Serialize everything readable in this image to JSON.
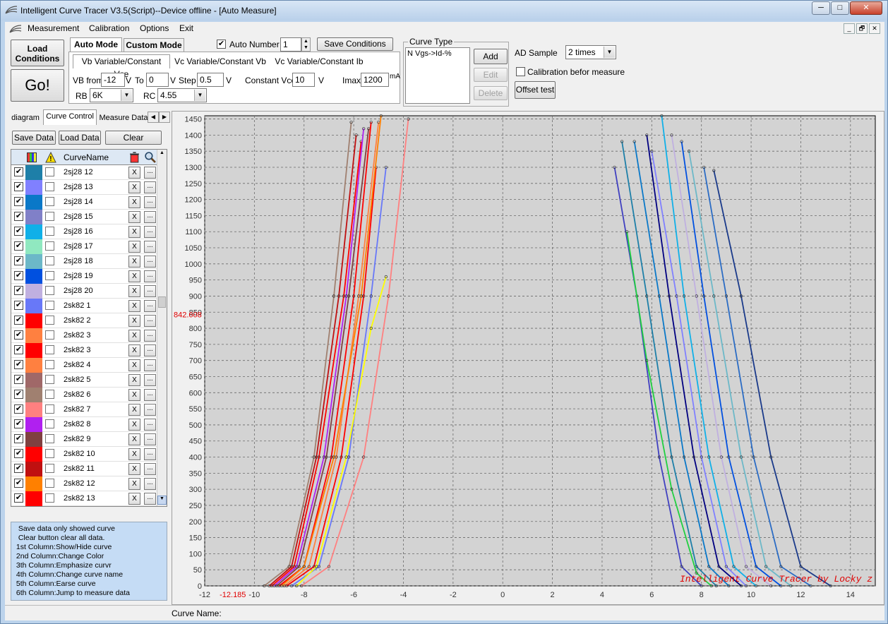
{
  "window": {
    "title": "Intelligent Curve Tracer V3.5(Script)--Device offline - [Auto Measure]",
    "controls": {
      "minimize": "─",
      "maximize": "□",
      "close": "✕"
    }
  },
  "menu": {
    "items": [
      "Measurement",
      "Calibration",
      "Options",
      "Exit"
    ],
    "mdi": {
      "minimize": "_",
      "restore": "🗗",
      "close": "✕"
    }
  },
  "toolbar": {
    "load_conditions": "Load\nConditions",
    "go": "Go!",
    "auto_mode_tab": "Auto Mode",
    "custom_mode_tab": "Custom Mode",
    "auto_number_label": "Auto Number",
    "auto_number_checked": true,
    "auto_number_value": "1",
    "save_conditions": "Save Conditions",
    "subtabs": [
      "Vb Variable/Constant Vce",
      "Vc Variable/Constant Vb",
      "Vc Variable/Constant Ib"
    ],
    "vb_from_label": "VB from",
    "vb_from_value": "-12",
    "v1": "V",
    "to_label": "To",
    "to_value": "0",
    "v2": "V",
    "step_label": "Step",
    "step_value": "0.5",
    "v3": "V",
    "constant_vce_label": "Constant Vce",
    "constant_vce_value": "10",
    "v4": "V",
    "imax_label": "Imax",
    "imax_value": "1200",
    "ma": "mA",
    "rb_label": "RB",
    "rb_value": "6K",
    "rc_label": "RC",
    "rc_value": "4.55"
  },
  "curve_type": {
    "title": "Curve Type",
    "items": [
      "N Vgs->Id-%"
    ],
    "add": "Add",
    "edit": "Edit",
    "delete": "Delete"
  },
  "ad": {
    "label": "AD Sample",
    "value": "2 times",
    "calibration_label": "Calibration befor measure",
    "calibration_checked": false,
    "offset_test": "Offset test"
  },
  "left_tabs": [
    "diagram",
    "Curve Control",
    "Measure Data"
  ],
  "left_buttons": {
    "save": "Save Data",
    "load": "Load Data",
    "clear": "Clear"
  },
  "grid": {
    "header": {
      "name": "CurveName"
    },
    "rows": [
      {
        "name": "2sj28 12",
        "color": "#1e7fa8"
      },
      {
        "name": "2sj28 13",
        "color": "#8080ff"
      },
      {
        "name": "2sj28 14",
        "color": "#0a78c8"
      },
      {
        "name": "2sj28 15",
        "color": "#8080c8"
      },
      {
        "name": "2sj28 16",
        "color": "#10b0e8"
      },
      {
        "name": "2sj28 17",
        "color": "#90e8c0"
      },
      {
        "name": "2sj28 18",
        "color": "#6cb8c8"
      },
      {
        "name": "2sj28 19",
        "color": "#0050e0"
      },
      {
        "name": "2sj28 20",
        "color": "#c0b0e0"
      },
      {
        "name": "2sk82 1",
        "color": "#6878f8"
      },
      {
        "name": "2sk82 2",
        "color": "#ff0000"
      },
      {
        "name": "2sk82 3",
        "color": "#ff8040"
      },
      {
        "name": "2sk82 3",
        "color": "#ff0000"
      },
      {
        "name": "2sk82 4",
        "color": "#ff8040"
      },
      {
        "name": "2sk82 5",
        "color": "#a06868"
      },
      {
        "name": "2sk82 6",
        "color": "#a08070"
      },
      {
        "name": "2sk82 7",
        "color": "#ff8080"
      },
      {
        "name": "2sk82 8",
        "color": "#b020f0"
      },
      {
        "name": "2sk82 9",
        "color": "#804040"
      },
      {
        "name": "2sk82 10",
        "color": "#ff0000"
      },
      {
        "name": "2sk82 11",
        "color": "#c01010"
      },
      {
        "name": "2sk82 12",
        "color": "#ff8000"
      },
      {
        "name": "2sk82 13",
        "color": "#ff0000"
      }
    ],
    "x_label": "X",
    "dots_label": "..."
  },
  "help_text": "  Save data only showed curve\n  Clear button clear all data.\n 1st Column:Show/Hide curve\n 2nd Column:Change Color\n 3th Column:Emphasize curvr\n 4th Column:Change curve name\n 5th Column:Earse curve\n 6th Column:Jump to measure data",
  "chart_data": {
    "type": "line",
    "xlim": [
      -12,
      15
    ],
    "ylim": [
      0,
      1460
    ],
    "x_ticks": [
      -12,
      -10,
      -8,
      -6,
      -4,
      -2,
      0,
      2,
      4,
      6,
      8,
      10,
      12,
      14
    ],
    "y_ticks": [
      0,
      50,
      100,
      150,
      200,
      250,
      300,
      350,
      400,
      450,
      500,
      550,
      600,
      650,
      700,
      750,
      800,
      850,
      900,
      950,
      1000,
      1050,
      1100,
      1150,
      1200,
      1250,
      1300,
      1350,
      1400,
      1450
    ],
    "cursor_x_label": "-12.185",
    "cursor_y_label": "842.608",
    "grid": true,
    "watermark": "Intelligent Curve Tracer by Locky z",
    "series_n": [
      {
        "color": "#a08070",
        "values": [
          [
            -9.6,
            0
          ],
          [
            -8.6,
            60
          ],
          [
            -7.6,
            400
          ],
          [
            -6.8,
            900
          ],
          [
            -6.1,
            1440
          ]
        ]
      },
      {
        "color": "#c01010",
        "values": [
          [
            -9.4,
            0
          ],
          [
            -8.5,
            60
          ],
          [
            -7.5,
            400
          ],
          [
            -6.6,
            900
          ],
          [
            -5.9,
            1400
          ]
        ]
      },
      {
        "color": "#ff0000",
        "values": [
          [
            -9.3,
            0
          ],
          [
            -8.4,
            60
          ],
          [
            -7.4,
            400
          ],
          [
            -6.4,
            900
          ],
          [
            -5.7,
            1380
          ]
        ]
      },
      {
        "color": "#b020f0",
        "values": [
          [
            -9.2,
            0
          ],
          [
            -8.3,
            60
          ],
          [
            -7.2,
            400
          ],
          [
            -6.3,
            900
          ],
          [
            -5.6,
            1420
          ]
        ]
      },
      {
        "color": "#804040",
        "values": [
          [
            -9.1,
            0
          ],
          [
            -8.2,
            60
          ],
          [
            -7.1,
            400
          ],
          [
            -6.2,
            900
          ],
          [
            -5.4,
            1420
          ]
        ]
      },
      {
        "color": "#ff0000",
        "values": [
          [
            -9.0,
            0
          ],
          [
            -8.0,
            60
          ],
          [
            -6.9,
            400
          ],
          [
            -6.0,
            900
          ],
          [
            -5.3,
            1440
          ]
        ]
      },
      {
        "color": "#ff8040",
        "values": [
          [
            -8.8,
            0
          ],
          [
            -7.8,
            60
          ],
          [
            -6.7,
            400
          ],
          [
            -5.8,
            900
          ],
          [
            -5.0,
            1440
          ]
        ]
      },
      {
        "color": "#ff0000",
        "values": [
          [
            -8.7,
            0
          ],
          [
            -7.6,
            60
          ],
          [
            -6.5,
            400
          ],
          [
            -5.6,
            900
          ],
          [
            -5.1,
            1300
          ]
        ]
      },
      {
        "color": "#6878f8",
        "values": [
          [
            -8.5,
            0
          ],
          [
            -7.4,
            60
          ],
          [
            -6.2,
            400
          ],
          [
            -5.3,
            900
          ],
          [
            -4.7,
            1300
          ]
        ]
      },
      {
        "color": "#ffff00",
        "values": [
          [
            -8.3,
            0
          ],
          [
            -7.5,
            60
          ],
          [
            -6.3,
            400
          ],
          [
            -5.3,
            800
          ],
          [
            -4.7,
            960
          ]
        ]
      },
      {
        "color": "#ff8080",
        "values": [
          [
            -8.1,
            0
          ],
          [
            -7.0,
            60
          ],
          [
            -5.6,
            400
          ],
          [
            -4.6,
            900
          ],
          [
            -3.8,
            1450
          ]
        ]
      },
      {
        "color": "#ff8000",
        "values": [
          [
            -8.9,
            0
          ],
          [
            -8.0,
            60
          ],
          [
            -6.8,
            400
          ],
          [
            -5.7,
            900
          ],
          [
            -4.9,
            1460
          ]
        ]
      }
    ],
    "series_p": [
      {
        "color": "#4040c0",
        "values": [
          [
            4.5,
            1300
          ],
          [
            5.4,
            900
          ],
          [
            6.3,
            400
          ],
          [
            7.2,
            60
          ],
          [
            8.0,
            0
          ]
        ]
      },
      {
        "color": "#1e7fa8",
        "values": [
          [
            4.8,
            1380
          ],
          [
            5.8,
            900
          ],
          [
            6.8,
            400
          ],
          [
            7.8,
            60
          ],
          [
            8.6,
            0
          ]
        ]
      },
      {
        "color": "#0a78c8",
        "values": [
          [
            5.3,
            1380
          ],
          [
            6.3,
            900
          ],
          [
            7.3,
            400
          ],
          [
            8.3,
            60
          ],
          [
            9.1,
            0
          ]
        ]
      },
      {
        "color": "#000080",
        "values": [
          [
            5.8,
            1400
          ],
          [
            6.7,
            900
          ],
          [
            7.7,
            400
          ],
          [
            8.7,
            60
          ],
          [
            9.6,
            0
          ]
        ]
      },
      {
        "color": "#10b0e8",
        "values": [
          [
            6.4,
            1460
          ],
          [
            7.3,
            900
          ],
          [
            8.3,
            400
          ],
          [
            9.3,
            60
          ],
          [
            10.2,
            0
          ]
        ]
      },
      {
        "color": "#c0b0e0",
        "values": [
          [
            6.8,
            1400
          ],
          [
            7.8,
            900
          ],
          [
            8.8,
            400
          ],
          [
            9.8,
            60
          ],
          [
            10.8,
            0
          ]
        ]
      },
      {
        "color": "#0050e0",
        "values": [
          [
            7.2,
            1380
          ],
          [
            8.1,
            900
          ],
          [
            9.1,
            400
          ],
          [
            10.2,
            60
          ],
          [
            11.2,
            0
          ]
        ]
      },
      {
        "color": "#6cb8c8",
        "values": [
          [
            7.5,
            1350
          ],
          [
            8.5,
            900
          ],
          [
            9.6,
            400
          ],
          [
            10.6,
            60
          ],
          [
            11.6,
            0
          ]
        ]
      },
      {
        "color": "#2b6cc4",
        "values": [
          [
            8.1,
            1300
          ],
          [
            9.0,
            900
          ],
          [
            10.1,
            400
          ],
          [
            11.2,
            60
          ],
          [
            12.4,
            0
          ]
        ]
      },
      {
        "color": "#1a3a8a",
        "values": [
          [
            8.5,
            1290
          ],
          [
            9.6,
            900
          ],
          [
            10.8,
            400
          ],
          [
            12.0,
            60
          ],
          [
            13.2,
            0
          ]
        ]
      },
      {
        "color": "#20d040",
        "values": [
          [
            5.0,
            1100
          ],
          [
            5.8,
            700
          ],
          [
            6.8,
            300
          ],
          [
            7.8,
            40
          ],
          [
            8.4,
            0
          ]
        ]
      },
      {
        "color": "#8080ff",
        "values": [
          [
            6.0,
            1350
          ],
          [
            7.0,
            900
          ],
          [
            8.0,
            400
          ],
          [
            9.0,
            60
          ],
          [
            9.8,
            0
          ]
        ]
      }
    ]
  },
  "status": {
    "curve_name_label": "Curve Name:"
  }
}
